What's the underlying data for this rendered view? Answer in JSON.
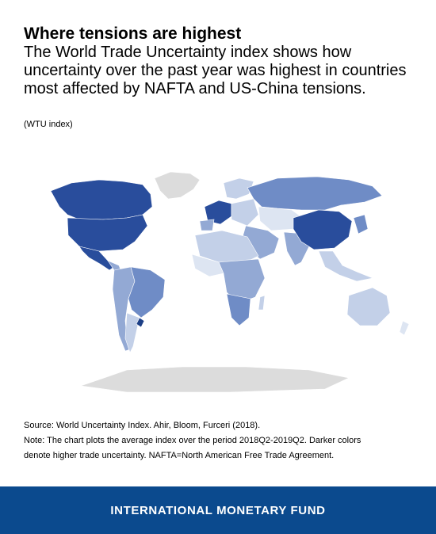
{
  "header": {
    "title": "Where tensions are highest",
    "subtitle": "The World Trade Uncertainty index shows how uncertainty over the past year was highest in countries most affected by NAFTA and US-China tensions.",
    "unit": "(WTU index)"
  },
  "map": {
    "type": "choropleth",
    "metric": "WTU index",
    "colors": {
      "no_data": "#dcdcdc",
      "very_low": "#dde5f2",
      "low": "#c3d0e8",
      "medium": "#93a9d4",
      "high": "#6f8cc6",
      "highest": "#294d9c",
      "darkest": "#1d3f86"
    },
    "regions": [
      {
        "region": "Canada",
        "level": "highest"
      },
      {
        "region": "United States",
        "level": "highest"
      },
      {
        "region": "Mexico",
        "level": "highest"
      },
      {
        "region": "China",
        "level": "highest"
      },
      {
        "region": "Western Europe",
        "level": "highest"
      },
      {
        "region": "Greenland",
        "level": "no_data"
      },
      {
        "region": "Antarctica",
        "level": "no_data"
      },
      {
        "region": "Russia",
        "level": "high"
      },
      {
        "region": "Brazil",
        "level": "high"
      },
      {
        "region": "South America (west)",
        "level": "medium"
      },
      {
        "region": "Argentina",
        "level": "low"
      },
      {
        "region": "Australia",
        "level": "low"
      },
      {
        "region": "Africa",
        "level": "low"
      },
      {
        "region": "Middle East",
        "level": "medium"
      },
      {
        "region": "India",
        "level": "medium"
      },
      {
        "region": "Southeast Asia",
        "level": "low"
      }
    ]
  },
  "notes": {
    "source": "Source: World Uncertainty Index. Ahir, Bloom, Furceri (2018).",
    "note_line1": "Note: The chart plots the average index over the period 2018Q2-2019Q2. Darker colors",
    "note_line2": "denote higher trade uncertainty. NAFTA=North American Free Trade Agreement."
  },
  "footer": {
    "label": "INTERNATIONAL MONETARY FUND"
  }
}
